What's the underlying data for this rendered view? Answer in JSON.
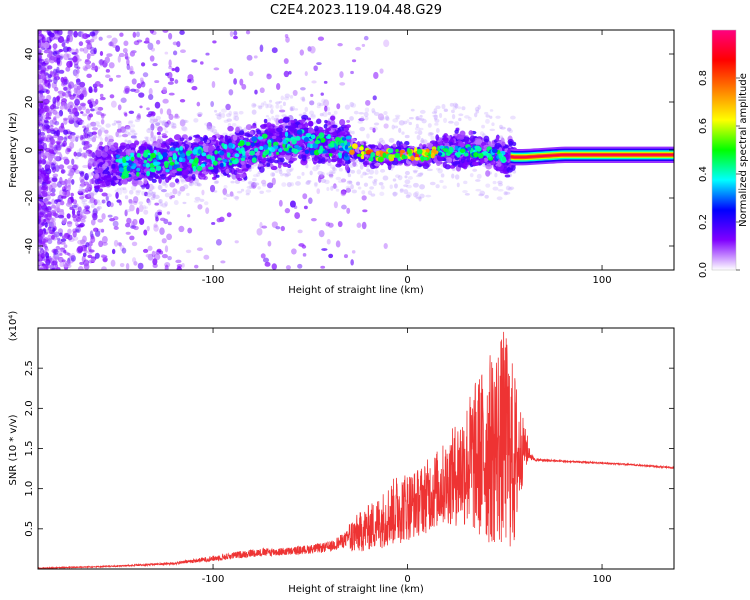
{
  "page_title": "C2E4.2023.119.04.48.G29",
  "chart_data": [
    {
      "type": "heatmap",
      "title": "C2E4.2023.119.04.48.G29",
      "xlabel": "Height of straight line (km)",
      "ylabel": "Frequency (Hz)",
      "xlim": [
        -190,
        137
      ],
      "ylim": [
        -50,
        50
      ],
      "x_ticks": [
        -100,
        0,
        100
      ],
      "x_tick_labels": [
        "-100",
        "0",
        "100"
      ],
      "y_ticks": [
        -40,
        -20,
        0,
        20,
        40
      ],
      "y_tick_labels": [
        "-40",
        "-20",
        "0",
        "20",
        "40"
      ],
      "colorbar": {
        "label": "Normalized spectral amplitude",
        "range": [
          0,
          1
        ],
        "ticks": [
          0.0,
          0.2,
          0.4,
          0.6,
          0.8
        ],
        "tick_labels": [
          "0.0",
          "0.2",
          "0.4",
          "0.6",
          "0.8"
        ],
        "colormap": [
          "#ffffff",
          "#8000ff",
          "#0000ff",
          "#00ffff",
          "#00ff00",
          "#ffff00",
          "#ff8000",
          "#ff0000",
          "#ff0080"
        ]
      },
      "ridge": {
        "height_km": [
          -190,
          -160,
          -140,
          -120,
          -100,
          -80,
          -60,
          -45,
          -30,
          -20,
          -10,
          0,
          10,
          20,
          30,
          45,
          55,
          60,
          80,
          100,
          120,
          137
        ],
        "frequency_hz": [
          -5,
          -8,
          -6,
          -4,
          -3,
          0,
          4,
          3,
          1,
          -2,
          -2,
          -2,
          -2,
          0,
          0,
          -2,
          -3,
          -3,
          -2,
          -2,
          -2,
          -2
        ]
      }
    },
    {
      "type": "line",
      "xlabel": "Height of straight line (km)",
      "ylabel": "SNR (10 * v/v)",
      "y_scale_label": "(x10⁴)",
      "xlim": [
        -190,
        137
      ],
      "ylim": [
        0,
        3.0
      ],
      "x_ticks": [
        -100,
        0,
        100
      ],
      "x_tick_labels": [
        "-100",
        "0",
        "100"
      ],
      "y_ticks": [
        0.5,
        1.0,
        1.5,
        2.0,
        2.5
      ],
      "y_tick_labels": [
        "0.5",
        "1.0",
        "1.5",
        "2.0",
        "2.5"
      ],
      "series": [
        {
          "name": "SNR",
          "color": "#ee3333",
          "envelope": {
            "height_km": [
              -190,
              -150,
              -120,
              -100,
              -80,
              -60,
              -40,
              -25,
              -15,
              -5,
              5,
              20,
              30,
              40,
              50,
              55,
              60,
              65,
              80,
              100,
              120,
              137
            ],
            "lower": [
              0.0,
              0.02,
              0.04,
              0.06,
              0.1,
              0.12,
              0.15,
              0.2,
              0.25,
              0.3,
              0.4,
              0.55,
              0.5,
              0.3,
              0.25,
              0.2,
              1.25,
              1.32,
              1.32,
              1.3,
              1.27,
              1.24
            ],
            "upper": [
              0.02,
              0.05,
              0.1,
              0.2,
              0.3,
              0.32,
              0.4,
              0.7,
              0.9,
              1.2,
              1.25,
              1.6,
              2.1,
              2.6,
              3.0,
              2.5,
              1.8,
              1.4,
              1.36,
              1.34,
              1.31,
              1.28
            ]
          }
        }
      ]
    }
  ]
}
